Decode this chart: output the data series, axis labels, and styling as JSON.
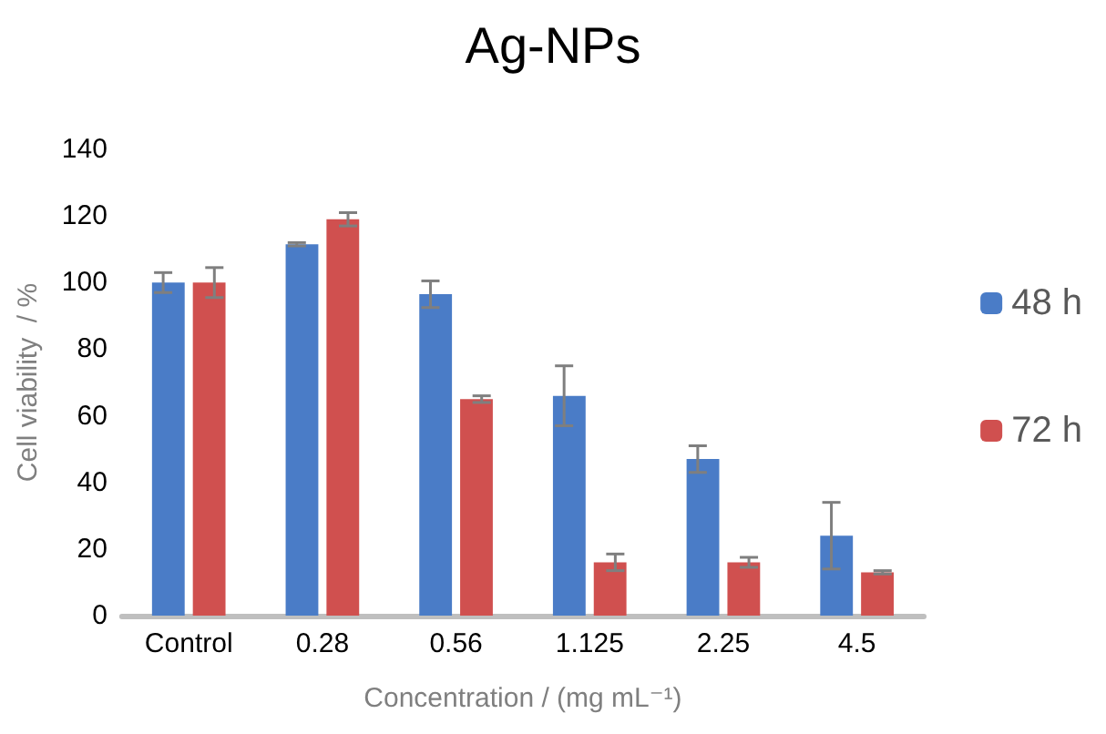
{
  "chart_data": {
    "type": "bar",
    "title": "Ag-NPs",
    "xlabel": "Concentration / (mg mL⁻¹)",
    "ylabel": "Cell viability  / %",
    "categories": [
      "Control",
      "0.28",
      "0.56",
      "1.125",
      "2.25",
      "4.5"
    ],
    "series": [
      {
        "name": "48 h",
        "color": "#4a7cc7",
        "values": [
          100,
          111.5,
          96.5,
          66,
          47,
          24
        ],
        "errors": [
          3,
          0.5,
          4,
          9,
          4,
          10
        ]
      },
      {
        "name": "72 h",
        "color": "#d0504f",
        "values": [
          100,
          119,
          65,
          16,
          16,
          13
        ],
        "errors": [
          4.5,
          2,
          1,
          2.5,
          1.5,
          0.5
        ]
      }
    ],
    "ylim": [
      0,
      140
    ],
    "yticks": [
      0,
      20,
      40,
      60,
      80,
      100,
      120,
      140
    ],
    "grid": false,
    "legend": "right"
  }
}
